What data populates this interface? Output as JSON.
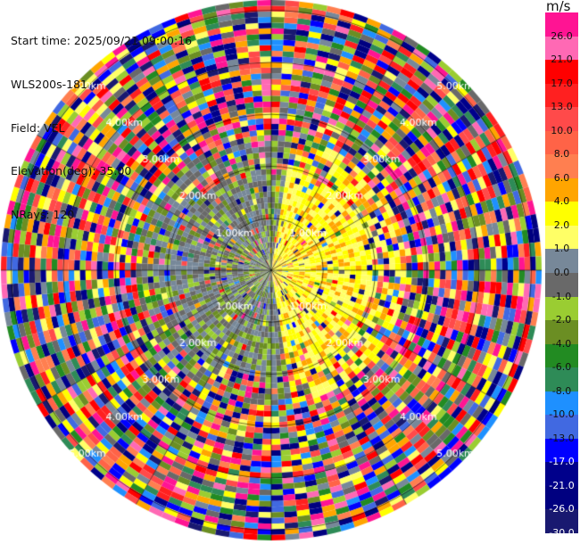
{
  "info": {
    "start_time": "Start time: 2025/09/21 09:00:16",
    "station": "WLS200s-181",
    "field": "Field: VEL",
    "elevation": "Elevation(deg): 35.00",
    "nrays": "NRays: 120"
  },
  "colorbar": {
    "units": "m/s",
    "colors": [
      "#ff1493",
      "#ff69b4",
      "#ff0000",
      "#ff2020",
      "#ff4a4a",
      "#ff6347",
      "#ff7f50",
      "#ffa500",
      "#ffff00",
      "#ffff66",
      "#778899",
      "#696969",
      "#9acd32",
      "#6b8e23",
      "#228b22",
      "#2e8b57",
      "#1e90ff",
      "#4169e1",
      "#0000ff",
      "#00008b",
      "#000080",
      "#191970"
    ],
    "labels": [
      "26.0",
      "21.0",
      "17.0",
      "13.0",
      "10.0",
      "8.0",
      "6.0",
      "4.0",
      "2.0",
      "1.0",
      "0.0",
      "-1.0",
      "-2.0",
      "-4.0",
      "-6.0",
      "-8.0",
      "-10.0",
      "-13.0",
      "-17.0",
      "-21.0",
      "-26.0",
      "-30.0"
    ]
  },
  "chart_data": {
    "type": "heatmap",
    "projection": "polar PPI",
    "field": "VEL",
    "units": "m/s",
    "range_rings": [
      "1.00km",
      "2.00km",
      "3.00km",
      "4.00km",
      "5.00km"
    ],
    "range_max_km": 5.2,
    "rays": 120,
    "grid": true,
    "pattern": "near-range: gray/green (about 0 to -2 m/s) to the west, yellow (about 2 to 4 m/s) to the east; beyond about 2 km: noisy random velocities"
  }
}
